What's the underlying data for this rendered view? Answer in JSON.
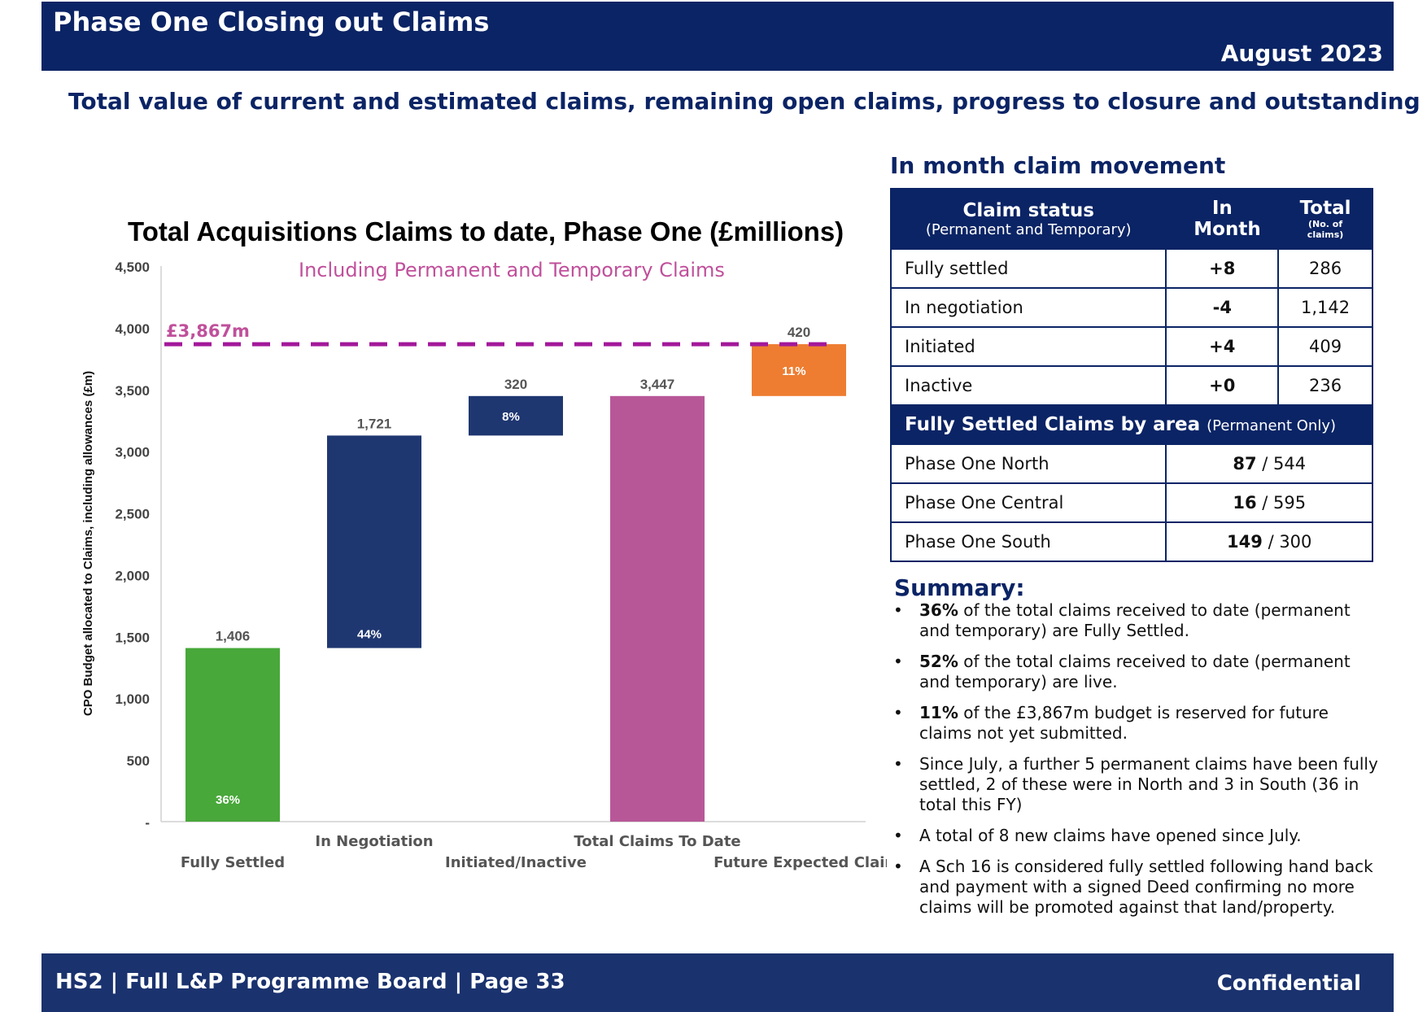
{
  "header": {
    "title": "Phase One Closing out Claims",
    "date": "August 2023"
  },
  "subtitle": "Total value of current and estimated claims, remaining open claims, progress to closure and outstanding value",
  "colors": {
    "navy": "#1f3771",
    "green": "#48a83a",
    "pink": "#b85798",
    "orange": "#ee7d31",
    "budget_line": "#a3189a"
  },
  "chart_data": {
    "type": "bar",
    "subtype": "waterfall",
    "title": "Total Acquisitions Claims to date, Phase One (£millions)",
    "subtitle": "Including Permanent and Temporary Claims",
    "ylabel": "CPO Budget allocated to Claims, including allowances (£m)",
    "ylim": [
      0,
      4500
    ],
    "yticks": [
      0,
      500,
      1000,
      1500,
      2000,
      2500,
      3000,
      3500,
      4000,
      4500
    ],
    "ytick_labels": [
      "-",
      "500",
      "1,000",
      "1,500",
      "2,000",
      "2,500",
      "3,000",
      "3,500",
      "4,000",
      "4,500"
    ],
    "categories": [
      "Fully Settled",
      "In Negotiation",
      "Initiated/Inactive",
      "Total Claims To Date",
      "Future Expected Claims"
    ],
    "bars": [
      {
        "category": "Fully Settled",
        "base": 0,
        "value": 1406,
        "label": "1,406",
        "pct": "36%",
        "color": "#48a83a"
      },
      {
        "category": "In Negotiation",
        "base": 1406,
        "value": 1721,
        "label": "1,721",
        "pct": "44%",
        "color": "#1f3771"
      },
      {
        "category": "Initiated/Inactive",
        "base": 3127,
        "value": 320,
        "label": "320",
        "pct": "8%",
        "color": "#1f3771"
      },
      {
        "category": "Total Claims To Date",
        "base": 0,
        "value": 3447,
        "label": "3,447",
        "pct": "",
        "color": "#b85798"
      },
      {
        "category": "Future Expected Claims",
        "base": 3447,
        "value": 420,
        "label": "420",
        "pct": "11%",
        "color": "#ee7d31"
      }
    ],
    "reference_line": {
      "value": 3867,
      "label": "£3,867m",
      "style": "dashed"
    },
    "grid": false,
    "legend": "none"
  },
  "movement": {
    "title": "In month claim movement",
    "col_status": "Claim status",
    "col_status_note": "(Permanent and Temporary)",
    "col_month": "In Month",
    "col_total": "Total",
    "col_total_note": "(No. of claims)",
    "rows": [
      {
        "status": "Fully settled",
        "month": "+8",
        "total": "286"
      },
      {
        "status": "In negotiation",
        "month": "-4",
        "total": "1,142"
      },
      {
        "status": "Initiated",
        "month": "+4",
        "total": "409"
      },
      {
        "status": "Inactive",
        "month": "+0",
        "total": "236"
      }
    ],
    "area_title": "Fully Settled Claims by area",
    "area_note": "(Permanent Only)",
    "areas": [
      {
        "name": "Phase One North",
        "settled": "87",
        "total": "/ 544"
      },
      {
        "name": "Phase One Central",
        "settled": "16",
        "total": "/ 595"
      },
      {
        "name": "Phase One South",
        "settled": "149",
        "total": "/ 300"
      }
    ]
  },
  "summary": {
    "title": "Summary:",
    "items": [
      {
        "bold": "36%",
        "text": " of the total claims received to date (permanent and temporary) are Fully Settled."
      },
      {
        "bold": "52%",
        "text": " of the total claims received to date (permanent and temporary) are live."
      },
      {
        "bold": "11%",
        "text": " of the £3,867m budget is reserved for future claims not yet submitted."
      },
      {
        "bold": "",
        "text": "Since July, a further 5 permanent claims have been fully settled, 2 of these were in North and 3 in South (36 in total this FY)"
      },
      {
        "bold": "",
        "text": "A total of 8 new claims have opened since July."
      },
      {
        "bold": "",
        "text": "A Sch 16 is considered fully settled following hand back and payment with a signed Deed confirming no more claims will be promoted against that land/property."
      }
    ]
  },
  "footer": {
    "left": "HS2 | Full L&P Programme Board | Page  33",
    "right": "Confidential"
  }
}
